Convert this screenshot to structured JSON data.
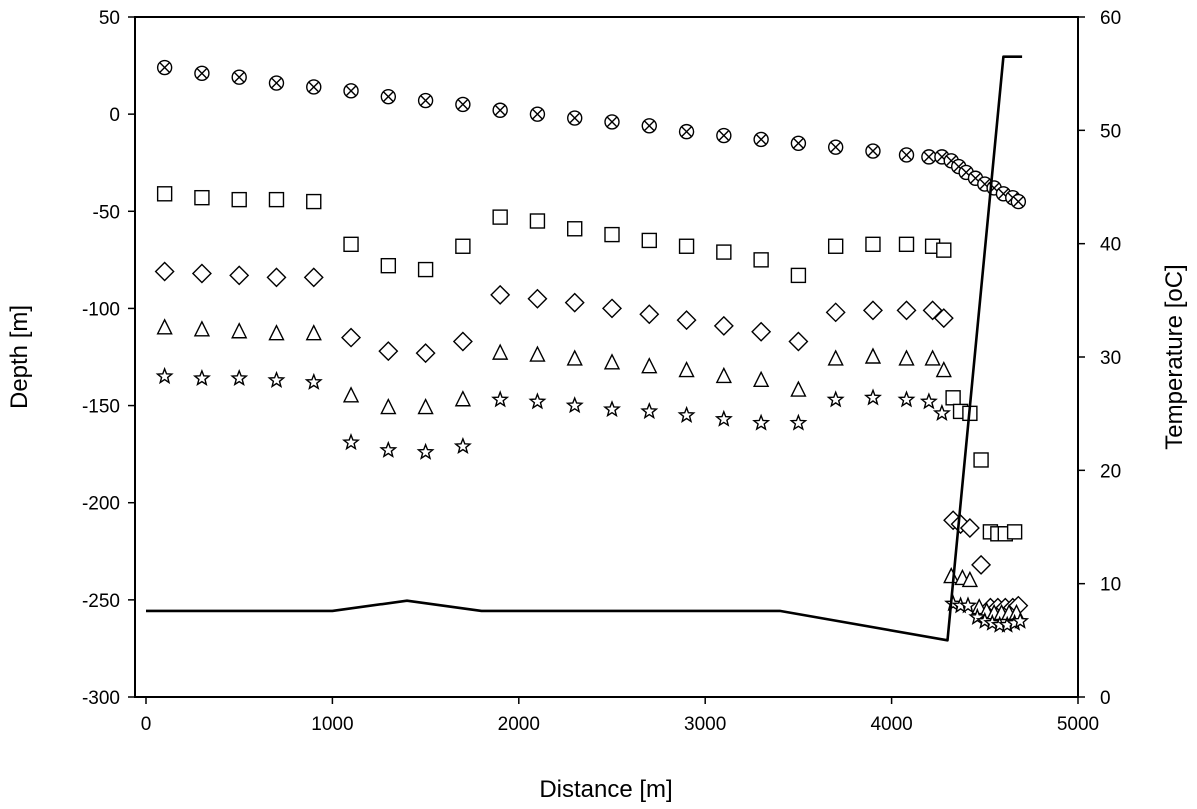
{
  "chart_data": {
    "type": "scatter",
    "xlabel": "Distance [m]",
    "ylabel": "Depth [m]",
    "y2label": "Temperature [oC]",
    "xlim": [
      0,
      5000
    ],
    "ylim": [
      -300,
      50
    ],
    "y2lim": [
      0,
      60
    ],
    "xticks": [
      "0",
      "1000",
      "2000",
      "3000",
      "4000",
      "5000"
    ],
    "yticks": [
      "-300",
      "-250",
      "-200",
      "-150",
      "-100",
      "-50",
      "0",
      "50"
    ],
    "y2ticks": [
      "0",
      "10",
      "20",
      "30",
      "40",
      "50",
      "60"
    ],
    "grid": false,
    "series": [
      {
        "marker": "circle-x",
        "axis": "left",
        "x": [
          100,
          300,
          500,
          700,
          900,
          1100,
          1300,
          1500,
          1700,
          1900,
          2100,
          2300,
          2500,
          2700,
          2900,
          3100,
          3300,
          3500,
          3700,
          3900,
          4080,
          4200,
          4270,
          4320,
          4360,
          4400,
          4450,
          4500,
          4550,
          4600,
          4650,
          4680
        ],
        "y": [
          24,
          21,
          19,
          16,
          14,
          12,
          9,
          7,
          5,
          2,
          0,
          -2,
          -4,
          -6,
          -9,
          -11,
          -13,
          -15,
          -17,
          -19,
          -21,
          -22,
          -22,
          -24,
          -27,
          -30,
          -33,
          -36,
          -38,
          -41,
          -43,
          -45
        ]
      },
      {
        "marker": "square",
        "axis": "left",
        "x": [
          100,
          300,
          500,
          700,
          900,
          1100,
          1300,
          1500,
          1700,
          1900,
          2100,
          2300,
          2500,
          2700,
          2900,
          3100,
          3300,
          3500,
          3700,
          3900,
          4080,
          4220,
          4280,
          4330,
          4370,
          4420,
          4480,
          4530,
          4570,
          4610,
          4660
        ],
        "y": [
          -41,
          -43,
          -44,
          -44,
          -45,
          -67,
          -78,
          -80,
          -68,
          -53,
          -55,
          -59,
          -62,
          -65,
          -68,
          -71,
          -75,
          -83,
          -68,
          -67,
          -67,
          -68,
          -70,
          -146,
          -153,
          -154,
          -178,
          -215,
          -216,
          -216,
          -215
        ]
      },
      {
        "marker": "diamond",
        "axis": "left",
        "x": [
          100,
          300,
          500,
          700,
          900,
          1100,
          1300,
          1500,
          1700,
          1900,
          2100,
          2300,
          2500,
          2700,
          2900,
          3100,
          3300,
          3500,
          3700,
          3900,
          4080,
          4220,
          4280,
          4330,
          4370,
          4420,
          4480,
          4530,
          4570,
          4610,
          4650,
          4680
        ],
        "y": [
          -81,
          -82,
          -83,
          -84,
          -84,
          -115,
          -122,
          -123,
          -117,
          -93,
          -95,
          -97,
          -100,
          -103,
          -106,
          -109,
          -112,
          -117,
          -102,
          -101,
          -101,
          -101,
          -105,
          -209,
          -211,
          -213,
          -232,
          -254,
          -254,
          -254,
          -254,
          -253
        ]
      },
      {
        "marker": "triangle",
        "axis": "left",
        "x": [
          100,
          300,
          500,
          700,
          900,
          1100,
          1300,
          1500,
          1700,
          1900,
          2100,
          2300,
          2500,
          2700,
          2900,
          3100,
          3300,
          3500,
          3700,
          3900,
          4080,
          4220,
          4280,
          4320,
          4380,
          4420,
          4470,
          4510,
          4550,
          4590,
          4630,
          4670
        ],
        "y": [
          -110,
          -111,
          -112,
          -113,
          -113,
          -145,
          -151,
          -151,
          -147,
          -123,
          -124,
          -126,
          -128,
          -130,
          -132,
          -135,
          -137,
          -142,
          -126,
          -125,
          -126,
          -126,
          -132,
          -238,
          -239,
          -240,
          -254,
          -256,
          -257,
          -257,
          -257,
          -257
        ]
      },
      {
        "marker": "star",
        "axis": "left",
        "x": [
          100,
          300,
          500,
          700,
          900,
          1100,
          1300,
          1500,
          1700,
          1900,
          2100,
          2300,
          2500,
          2700,
          2900,
          3100,
          3300,
          3500,
          3700,
          3900,
          4080,
          4200,
          4270,
          4330,
          4370,
          4410,
          4460,
          4500,
          4540,
          4580,
          4620,
          4660,
          4690
        ],
        "y": [
          -135,
          -136,
          -136,
          -137,
          -138,
          -169,
          -173,
          -174,
          -171,
          -147,
          -148,
          -150,
          -152,
          -153,
          -155,
          -157,
          -159,
          -159,
          -147,
          -146,
          -147,
          -148,
          -154,
          -252,
          -253,
          -253,
          -259,
          -261,
          -262,
          -263,
          -263,
          -262,
          -261
        ]
      },
      {
        "marker": "line",
        "axis": "right",
        "x": [
          0,
          1000,
          1400,
          1800,
          3400,
          4300,
          4600,
          4700
        ],
        "y": [
          7.6,
          7.6,
          8.5,
          7.6,
          7.6,
          5.0,
          56.5,
          56.5
        ]
      }
    ]
  }
}
